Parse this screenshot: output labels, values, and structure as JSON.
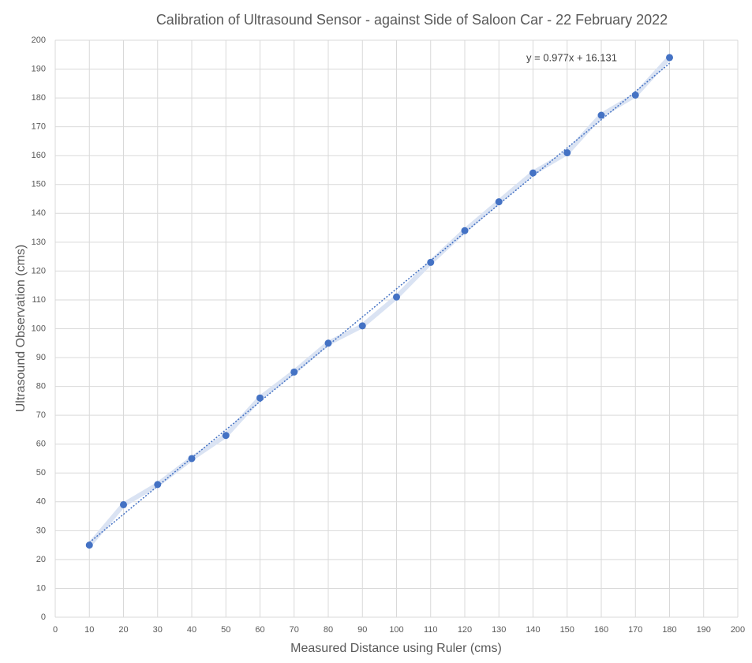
{
  "chart_data": {
    "type": "scatter",
    "title": "Calibration of Ultrasound Sensor - against Side of Saloon Car - 22 February 2022",
    "x_label": "Measured Distance using Ruler (cms)",
    "y_label": "Ultrasound Observation (cms)",
    "x": [
      10,
      20,
      30,
      40,
      50,
      60,
      70,
      80,
      90,
      100,
      110,
      120,
      130,
      140,
      150,
      160,
      170,
      180
    ],
    "series": [
      {
        "color": "#4472c4",
        "line_color": "#dae3f3",
        "values": [
          25,
          39,
          46,
          55,
          63,
          76,
          85,
          95,
          101,
          111,
          123,
          134,
          144,
          154,
          161,
          174,
          181,
          194
        ]
      }
    ],
    "trendline": {
      "slope": 0.977,
      "intercept": 16.131,
      "label": "y = 0.977x + 16.131",
      "color": "#4472c4"
    },
    "xlim": [
      0,
      200
    ],
    "ylim": [
      0,
      200
    ],
    "xticks": [
      0,
      10,
      20,
      30,
      40,
      50,
      60,
      70,
      80,
      90,
      100,
      110,
      120,
      130,
      140,
      150,
      160,
      170,
      180,
      190,
      200
    ],
    "yticks": [
      0,
      10,
      20,
      30,
      40,
      50,
      60,
      70,
      80,
      90,
      100,
      110,
      120,
      130,
      140,
      150,
      160,
      170,
      180,
      190,
      200
    ],
    "grid": true
  }
}
